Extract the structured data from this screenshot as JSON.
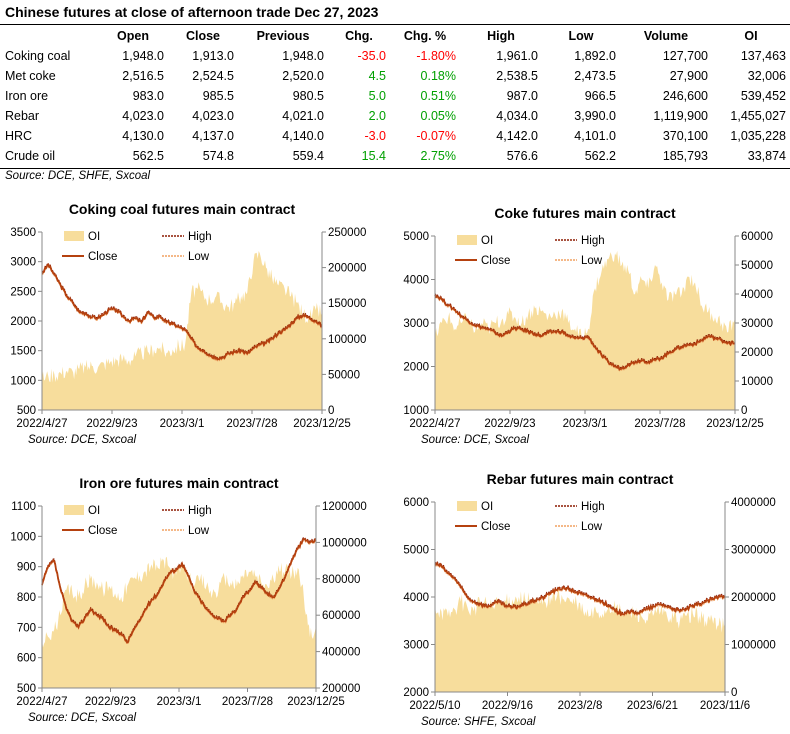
{
  "table": {
    "title": "Chinese futures at close of afternoon trade Dec 27, 2023",
    "headers": [
      "",
      "Open",
      "Close",
      "Previous",
      "Chg.",
      "Chg. %",
      "High",
      "Low",
      "Volume",
      "OI"
    ],
    "rows": [
      {
        "name": "Coking coal",
        "open": "1,948.0",
        "close": "1,913.0",
        "previous": "1,948.0",
        "chg": "-35.0",
        "chg_pct": "-1.80%",
        "high": "1,961.0",
        "low": "1,892.0",
        "volume": "127,700",
        "oi": "137,463",
        "dir": "neg"
      },
      {
        "name": "Met coke",
        "open": "2,516.5",
        "close": "2,524.5",
        "previous": "2,520.0",
        "chg": "4.5",
        "chg_pct": "0.18%",
        "high": "2,538.5",
        "low": "2,473.5",
        "volume": "27,900",
        "oi": "32,006",
        "dir": "pos"
      },
      {
        "name": "Iron ore",
        "open": "983.0",
        "close": "985.5",
        "previous": "980.5",
        "chg": "5.0",
        "chg_pct": "0.51%",
        "high": "987.0",
        "low": "966.5",
        "volume": "246,600",
        "oi": "539,452",
        "dir": "pos"
      },
      {
        "name": "Rebar",
        "open": "4,023.0",
        "close": "4,023.0",
        "previous": "4,021.0",
        "chg": "2.0",
        "chg_pct": "0.05%",
        "high": "4,034.0",
        "low": "3,990.0",
        "volume": "1,119,900",
        "oi": "1,455,027",
        "dir": "pos"
      },
      {
        "name": "HRC",
        "open": "4,130.0",
        "close": "4,137.0",
        "previous": "4,140.0",
        "chg": "-3.0",
        "chg_pct": "-0.07%",
        "high": "4,142.0",
        "low": "4,101.0",
        "volume": "370,100",
        "oi": "1,035,228",
        "dir": "neg"
      },
      {
        "name": "Crude oil",
        "open": "562.5",
        "close": "574.8",
        "previous": "559.4",
        "chg": "15.4",
        "chg_pct": "2.75%",
        "high": "576.6",
        "low": "562.2",
        "volume": "185,793",
        "oi": "33,874",
        "dir": "pos"
      }
    ],
    "source": "Source: DCE, SHFE, Sxcoal"
  },
  "colors": {
    "oi": "#f7dd9c",
    "close": "#b5410f",
    "high": "#8b1a00",
    "low": "#f0a060",
    "neg": "#ff0000",
    "pos": "#00a000"
  },
  "chart_data": [
    {
      "type": "line",
      "title": "Coking coal futures main contract",
      "source": "Source:  DCE, Sxcoal",
      "legend": [
        "OI",
        "High",
        "Close",
        "Low"
      ],
      "x_ticks": [
        "2022/4/27",
        "2022/9/23",
        "2023/3/1",
        "2023/7/28",
        "2023/12/25"
      ],
      "y_left": {
        "min": 500,
        "max": 3500,
        "step": 500
      },
      "y_right": {
        "min": 0,
        "max": 250000,
        "step": 50000
      },
      "close": [
        2800,
        2950,
        2780,
        2600,
        2420,
        2300,
        2150,
        2130,
        2060,
        2050,
        2120,
        2200,
        2180,
        2080,
        2000,
        2050,
        1980,
        2150,
        2050,
        2080,
        1980,
        1950,
        1900,
        1850,
        1700,
        1550,
        1500,
        1420,
        1380,
        1380,
        1450,
        1480,
        1500,
        1450,
        1540,
        1600,
        1630,
        1700,
        1800,
        1850,
        1950,
        2050,
        2100,
        2050,
        2000,
        1913
      ],
      "oi": [
        45000,
        48000,
        50000,
        52000,
        55000,
        53000,
        58000,
        60000,
        62000,
        60000,
        65000,
        68000,
        70000,
        72000,
        70000,
        75000,
        80000,
        82000,
        85000,
        88000,
        80000,
        85000,
        90000,
        92000,
        165000,
        170000,
        160000,
        155000,
        160000,
        150000,
        145000,
        150000,
        160000,
        165000,
        210000,
        220000,
        200000,
        185000,
        175000,
        170000,
        160000,
        150000,
        135000,
        130000,
        140000,
        137463
      ]
    },
    {
      "type": "line",
      "title": "Coke futures main contract",
      "source": "Source:  DCE, Sxcoal",
      "legend": [
        "OI",
        "High",
        "Close",
        "Low"
      ],
      "x_ticks": [
        "2022/4/27",
        "2022/9/23",
        "2023/3/1",
        "2023/7/28",
        "2023/12/25"
      ],
      "y_left": {
        "min": 1000,
        "max": 5000,
        "step": 1000
      },
      "y_right": {
        "min": 0,
        "max": 60000,
        "step": 10000
      },
      "close": [
        3650,
        3550,
        3400,
        3300,
        3150,
        3050,
        2950,
        2900,
        2850,
        2780,
        2700,
        2800,
        2880,
        2850,
        2800,
        2750,
        2700,
        2780,
        2800,
        2800,
        2700,
        2650,
        2650,
        2680,
        2450,
        2250,
        2100,
        2000,
        1950,
        2050,
        2100,
        2150,
        2100,
        2150,
        2200,
        2300,
        2400,
        2450,
        2500,
        2520,
        2600,
        2700,
        2650,
        2600,
        2550,
        2524
      ],
      "oi": [
        25000,
        30000,
        32000,
        28000,
        30000,
        32000,
        27000,
        30000,
        28000,
        30000,
        31000,
        33000,
        32000,
        30000,
        33000,
        35000,
        34000,
        32000,
        33000,
        34000,
        30000,
        28000,
        25000,
        28000,
        42000,
        48000,
        52000,
        54000,
        50000,
        48000,
        40000,
        45000,
        42000,
        50000,
        44000,
        38000,
        40000,
        40000,
        46000,
        44000,
        36000,
        34000,
        32000,
        30000,
        27000,
        32006
      ]
    },
    {
      "type": "line",
      "title": "Iron ore futures main contract",
      "source": "Source:  DCE, Sxcoal",
      "legend": [
        "OI",
        "High",
        "Close",
        "Low"
      ],
      "x_ticks": [
        "2022/4/27",
        "2022/9/23",
        "2023/3/1",
        "2023/7/28",
        "2023/12/25"
      ],
      "y_left": {
        "min": 500,
        "max": 1100,
        "step": 100
      },
      "y_right": {
        "min": 200000,
        "max": 1200000,
        "step": 200000
      },
      "close": [
        840,
        900,
        920,
        830,
        760,
        720,
        700,
        730,
        760,
        740,
        730,
        700,
        690,
        680,
        650,
        690,
        720,
        760,
        790,
        810,
        850,
        880,
        890,
        910,
        870,
        820,
        790,
        760,
        740,
        730,
        720,
        740,
        760,
        800,
        820,
        850,
        830,
        810,
        800,
        830,
        870,
        920,
        960,
        990,
        980,
        985.5
      ],
      "oi": [
        460000,
        480000,
        520000,
        600000,
        740000,
        720000,
        700000,
        760000,
        800000,
        780000,
        740000,
        760000,
        720000,
        700000,
        760000,
        800000,
        820000,
        840000,
        880000,
        860000,
        900000,
        860000,
        820000,
        860000,
        820000,
        760000,
        800000,
        760000,
        720000,
        740000,
        800000,
        780000,
        760000,
        820000,
        840000,
        820000,
        780000,
        760000,
        800000,
        840000,
        860000,
        820000,
        860000,
        700000,
        480000,
        539452
      ]
    },
    {
      "type": "line",
      "title": "Rebar futures main contract",
      "source": "Source:  SHFE, Sxcoal",
      "legend": [
        "OI",
        "High",
        "Close",
        "Low"
      ],
      "x_ticks": [
        "2022/5/10",
        "2022/9/16",
        "2023/2/8",
        "2023/6/21",
        "2023/11/6"
      ],
      "y_left": {
        "min": 2000,
        "max": 6000,
        "step": 1000
      },
      "y_right": {
        "min": 0,
        "max": 4000000,
        "step": 1000000
      },
      "close": [
        4700,
        4650,
        4500,
        4400,
        4200,
        4000,
        3900,
        3850,
        3800,
        3850,
        3900,
        3800,
        3780,
        3800,
        3850,
        3900,
        3950,
        4000,
        4100,
        4150,
        4200,
        4150,
        4100,
        4050,
        4000,
        3950,
        3900,
        3800,
        3700,
        3650,
        3700,
        3650,
        3700,
        3750,
        3800,
        3850,
        3800,
        3750,
        3700,
        3750,
        3800,
        3850,
        3900,
        3950,
        4000,
        4023
      ],
      "oi": [
        1800000,
        1700000,
        1600000,
        1750000,
        1900000,
        1800000,
        1700000,
        1900000,
        1850000,
        1800000,
        1850000,
        1900000,
        1950000,
        2000000,
        1950000,
        1900000,
        1850000,
        1900000,
        2000000,
        2050000,
        1950000,
        1900000,
        1850000,
        1700000,
        1600000,
        1700000,
        1650000,
        1800000,
        1750000,
        1700000,
        1650000,
        1700000,
        1600000,
        1500000,
        1650000,
        1700000,
        1600000,
        1550000,
        1500000,
        1600000,
        1650000,
        1600000,
        1500000,
        1550000,
        1400000,
        1455027
      ]
    }
  ]
}
